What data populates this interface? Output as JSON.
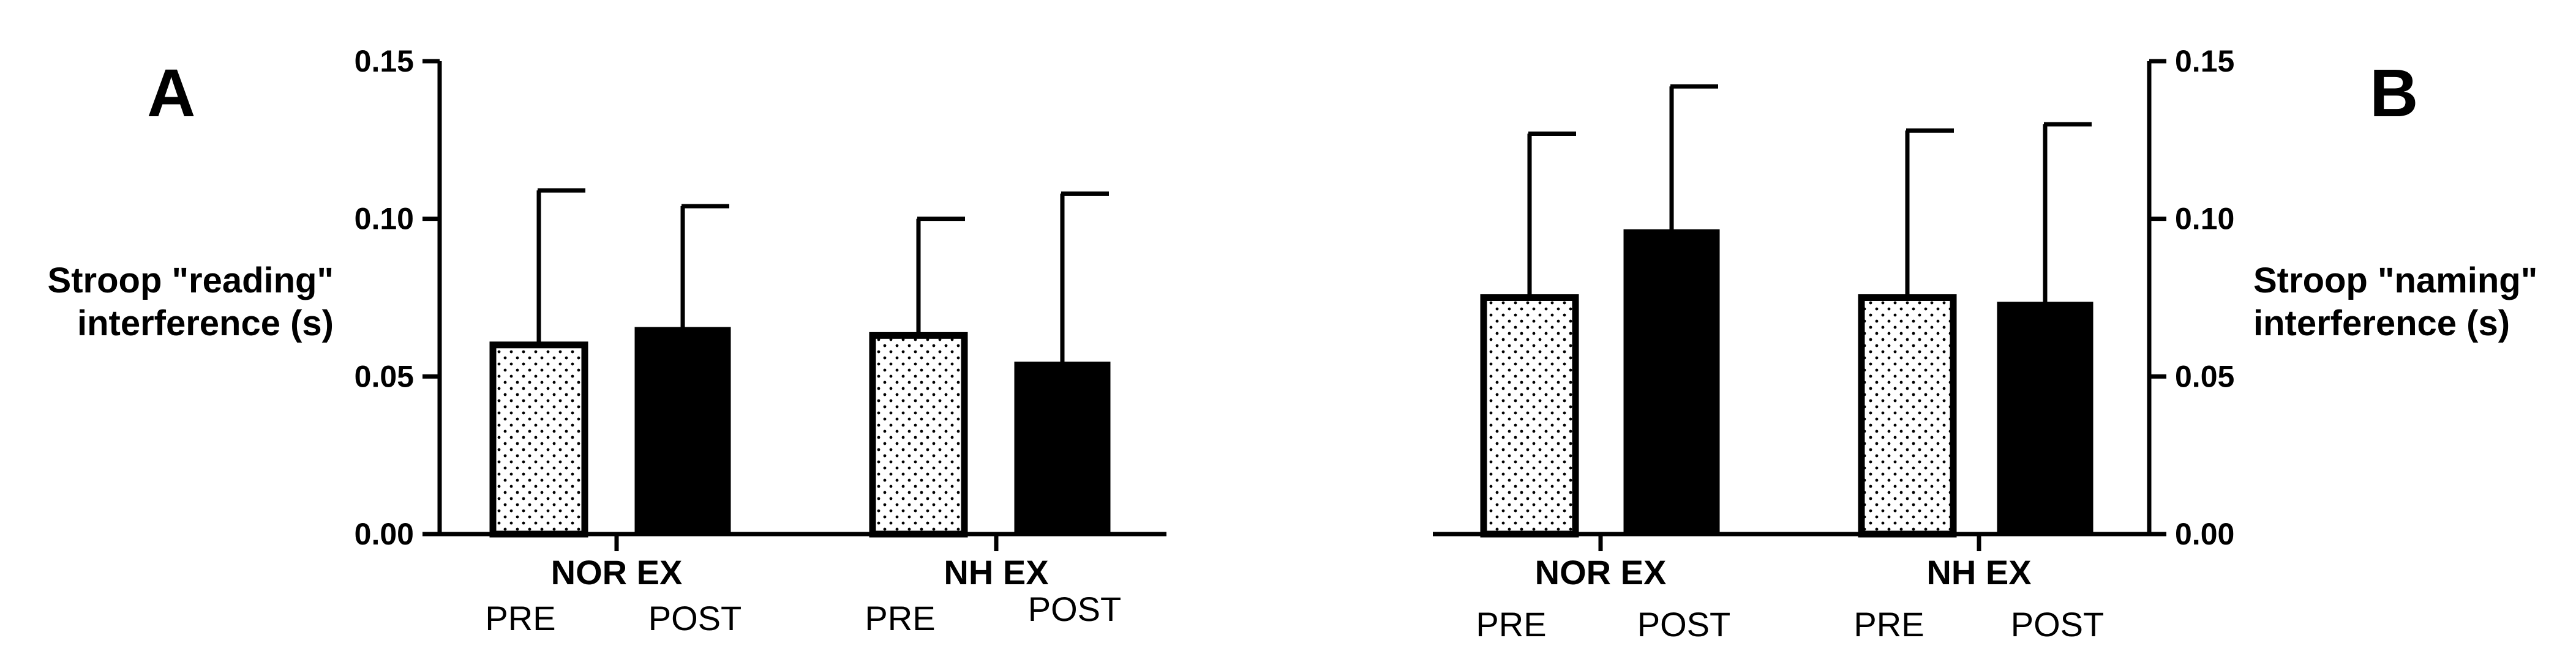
{
  "chart_data": [
    {
      "type": "bar",
      "panel": "A",
      "ylabel_lines": [
        "Stroop \"reading\"",
        "interference (s)"
      ],
      "categories": [
        "NOR EX",
        "NH EX"
      ],
      "condition_labels": [
        "PRE",
        "POST"
      ],
      "yticks": [
        "0.00",
        "0.05",
        "0.10",
        "0.15"
      ],
      "ylim": [
        0,
        0.15
      ],
      "series": [
        {
          "condition": "PRE",
          "pattern": "dotted",
          "values": [
            0.06,
            0.063
          ],
          "error_upper": [
            0.109,
            0.1
          ]
        },
        {
          "condition": "POST",
          "pattern": "solid-black",
          "values": [
            0.065,
            0.054
          ],
          "error_upper": [
            0.104,
            0.108
          ]
        }
      ],
      "axis_side": "left",
      "grid": false
    },
    {
      "type": "bar",
      "panel": "B",
      "ylabel_lines": [
        "Stroop \"naming\"",
        "interference (s)"
      ],
      "categories": [
        "NOR EX",
        "NH EX"
      ],
      "condition_labels": [
        "PRE",
        "POST"
      ],
      "yticks": [
        "0.00",
        "0.05",
        "0.10",
        "0.15"
      ],
      "ylim": [
        0,
        0.15
      ],
      "series": [
        {
          "condition": "PRE",
          "pattern": "dotted",
          "values": [
            0.075,
            0.075
          ],
          "error_upper": [
            0.127,
            0.128
          ]
        },
        {
          "condition": "POST",
          "pattern": "solid-black",
          "values": [
            0.096,
            0.073
          ],
          "error_upper": [
            0.142,
            0.13
          ]
        }
      ],
      "axis_side": "right",
      "grid": false
    }
  ],
  "colors": {
    "bar_fill_solid": "#000000",
    "bar_fill_dotted_bg": "#ffffff",
    "dot": "#000000",
    "axis": "#000000"
  }
}
